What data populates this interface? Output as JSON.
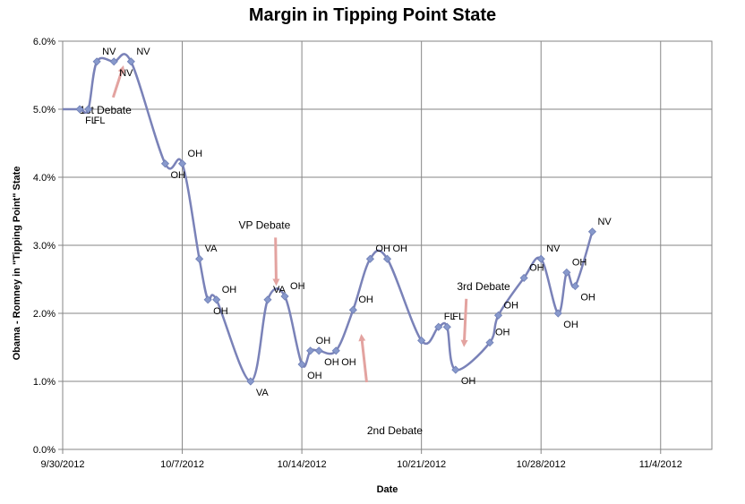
{
  "chart_data": {
    "type": "line",
    "title": "Margin in Tipping Point State",
    "xlabel": "Date",
    "ylabel": "Obama - Romney in \"Tipping Point\" State",
    "x_ticks": [
      "9/30/2012",
      "10/7/2012",
      "10/14/2012",
      "10/21/2012",
      "10/28/2012",
      "11/4/2012"
    ],
    "y_ticks": [
      "0.0%",
      "1.0%",
      "2.0%",
      "3.0%",
      "4.0%",
      "5.0%",
      "6.0%"
    ],
    "xlim": [
      "2012-09-30",
      "2012-11-07"
    ],
    "ylim": [
      0,
      6
    ],
    "grid": true,
    "series": [
      {
        "color": "#7a82b8",
        "marker_color": "#8899cc",
        "points": [
          {
            "x": "2012-09-30",
            "y": 5.0,
            "label": ""
          },
          {
            "x": "2012-10-01",
            "y": 5.0,
            "label": "FL"
          },
          {
            "x": "2012-10-01",
            "y": 5.0,
            "label": "FL"
          },
          {
            "x": "2012-10-02",
            "y": 5.7,
            "label": "NV"
          },
          {
            "x": "2012-10-03",
            "y": 5.7,
            "label": "NV"
          },
          {
            "x": "2012-10-04",
            "y": 5.7,
            "label": "NV"
          },
          {
            "x": "2012-10-06",
            "y": 4.2,
            "label": "OH"
          },
          {
            "x": "2012-10-07",
            "y": 4.2,
            "label": "OH"
          },
          {
            "x": "2012-10-08",
            "y": 2.8,
            "label": "VA"
          },
          {
            "x": "2012-10-08",
            "y": 2.2,
            "label": "OH"
          },
          {
            "x": "2012-10-09",
            "y": 2.2,
            "label": "OH"
          },
          {
            "x": "2012-10-11",
            "y": 1.0,
            "label": "VA"
          },
          {
            "x": "2012-10-12",
            "y": 2.2,
            "label": "VA"
          },
          {
            "x": "2012-10-13",
            "y": 2.25,
            "label": "OH"
          },
          {
            "x": "2012-10-14",
            "y": 1.25,
            "label": "OH"
          },
          {
            "x": "2012-10-14",
            "y": 1.45,
            "label": "OH"
          },
          {
            "x": "2012-10-15",
            "y": 1.45,
            "label": "OH"
          },
          {
            "x": "2012-10-16",
            "y": 1.45,
            "label": "OH"
          },
          {
            "x": "2012-10-17",
            "y": 2.05,
            "label": "OH"
          },
          {
            "x": "2012-10-18",
            "y": 2.8,
            "label": "OH"
          },
          {
            "x": "2012-10-19",
            "y": 2.8,
            "label": "OH"
          },
          {
            "x": "2012-10-21",
            "y": 1.6,
            "label": ""
          },
          {
            "x": "2012-10-22",
            "y": 1.8,
            "label": "FL"
          },
          {
            "x": "2012-10-22",
            "y": 1.8,
            "label": "FL"
          },
          {
            "x": "2012-10-23",
            "y": 1.17,
            "label": "OH"
          },
          {
            "x": "2012-10-25",
            "y": 1.57,
            "label": "OH"
          },
          {
            "x": "2012-10-25",
            "y": 1.97,
            "label": "OH"
          },
          {
            "x": "2012-10-27",
            "y": 2.52,
            "label": "OH"
          },
          {
            "x": "2012-10-28",
            "y": 2.8,
            "label": "NV"
          },
          {
            "x": "2012-10-29",
            "y": 2.0,
            "label": "OH"
          },
          {
            "x": "2012-10-29",
            "y": 2.6,
            "label": "OH"
          },
          {
            "x": "2012-10-30",
            "y": 2.4,
            "label": "OH"
          },
          {
            "x": "2012-10-31",
            "y": 3.2,
            "label": "NV"
          }
        ]
      }
    ],
    "annotations": [
      {
        "text": "1st Debate",
        "x": "2012-10-03",
        "y": 5.7
      },
      {
        "text": "VP Debate",
        "x": "2012-10-12",
        "y": 2.35
      },
      {
        "text": "2nd Debate",
        "x": "2012-10-17",
        "y": 1.75
      },
      {
        "text": "3rd Debate",
        "x": "2012-10-23",
        "y": 1.45
      }
    ],
    "arrow_color": "#e3a3a0"
  }
}
